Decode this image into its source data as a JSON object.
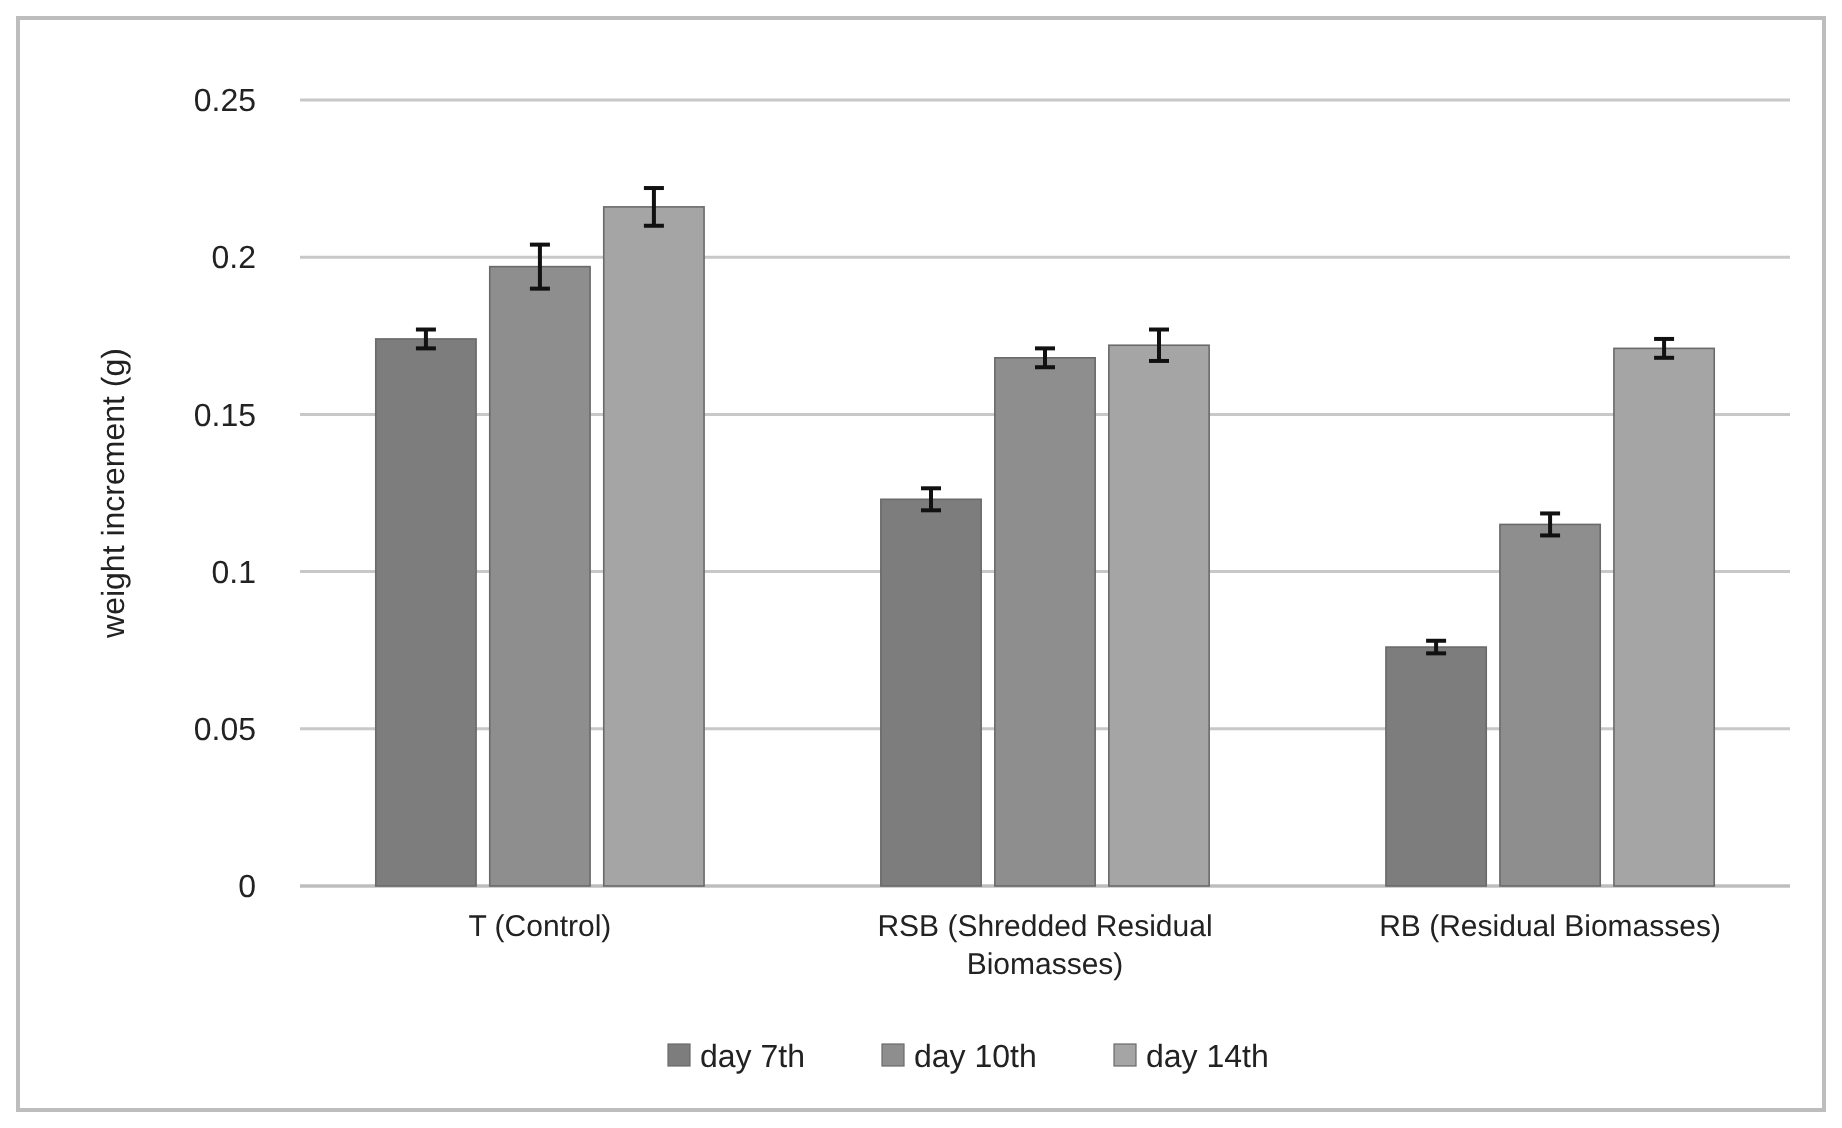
{
  "chart_data": {
    "type": "bar",
    "ylabel": "weight increment (g)",
    "categories": [
      "T (Control)",
      "RSB (Shredded Residual Biomasses)",
      "RB (Residual Biomasses)"
    ],
    "series": [
      {
        "name": "day 7th",
        "color": "#7d7d7d",
        "values": [
          0.174,
          0.123,
          0.076
        ],
        "errors": [
          0.003,
          0.0035,
          0.002
        ]
      },
      {
        "name": "day 10th",
        "color": "#8e8e8e",
        "values": [
          0.197,
          0.168,
          0.115
        ],
        "errors": [
          0.007,
          0.003,
          0.0035
        ]
      },
      {
        "name": "day 14th",
        "color": "#a5a5a5",
        "values": [
          0.216,
          0.172,
          0.171
        ],
        "errors": [
          0.006,
          0.005,
          0.003
        ]
      }
    ],
    "ylim": [
      0,
      0.25
    ],
    "yticks": [
      0,
      0.05,
      0.1,
      0.15,
      0.2,
      0.25
    ],
    "grid": "y",
    "legend": "bottom"
  }
}
